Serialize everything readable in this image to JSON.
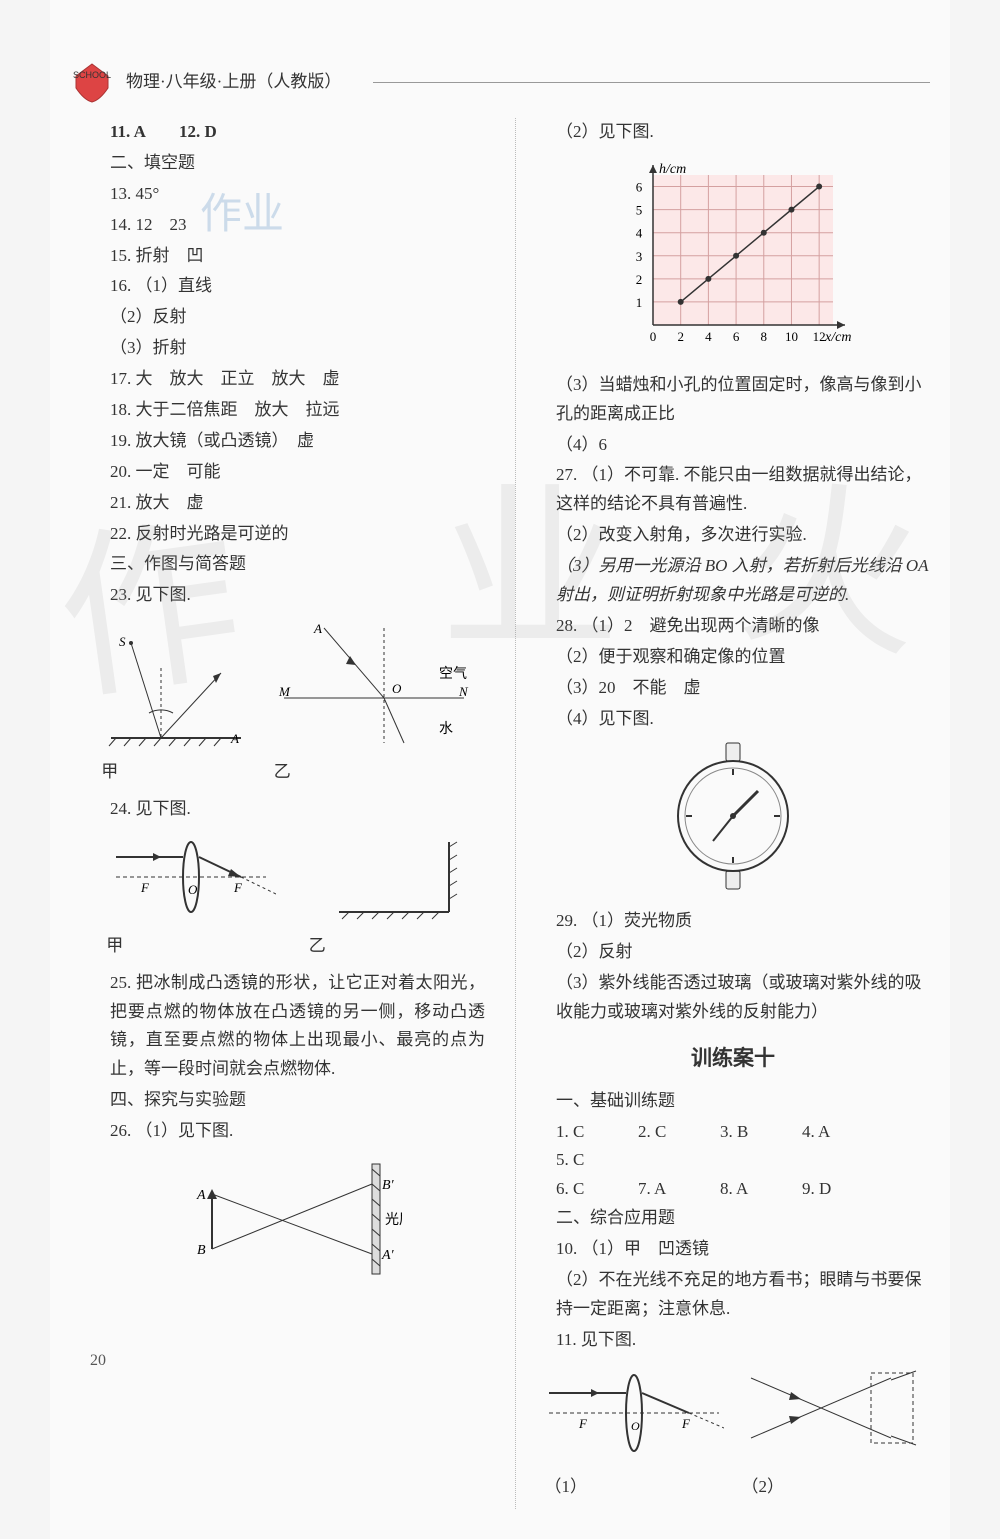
{
  "header": {
    "title": "物理·八年级·上册（人教版）",
    "logo_text": "SCHOOL"
  },
  "page_number": "20",
  "watermarks": {
    "big1": "作",
    "big2": "业",
    "big3": "火",
    "small": "作业"
  },
  "left": {
    "l11_12": "11. A　　12. D",
    "sec2": "二、填空题",
    "l13": "13. 45°",
    "l14": "14. 12　23",
    "l15": "15. 折射　凹",
    "l16": "16. （1）直线",
    "l16b": "（2）反射",
    "l16c": "（3）折射",
    "l17": "17. 大　放大　正立　放大　虚",
    "l18": "18. 大于二倍焦距　放大　拉远",
    "l19": "19. 放大镜（或凸透镜）　虚",
    "l20": "20. 一定　可能",
    "l21": "21. 放大　虚",
    "l22": "22. 反射时光路是可逆的",
    "sec3": "三、作图与简答题",
    "l23": "23. 见下图.",
    "diag23": {
      "left_label": "甲",
      "right_label": "乙",
      "s": "S",
      "a": "A",
      "M": "M",
      "N": "N",
      "O": "O",
      "air": "空气",
      "water": "水"
    },
    "l24": "24. 见下图.",
    "diag24": {
      "left_label": "甲",
      "right_label": "乙",
      "F": "F",
      "O": "O"
    },
    "l25": "25. 把冰制成凸透镜的形状，让它正对着太阳光，把要点燃的物体放在凸透镜的另一侧，移动凸透镜，直至要点燃的物体上出现最小、最亮的点为止，等一段时间就会点燃物体.",
    "sec4": "四、探究与实验题",
    "l26": "26. （1）见下图.",
    "diag26": {
      "A": "A",
      "B": "B",
      "Ap": "A′",
      "Bp": "B′",
      "screen": "光屏"
    }
  },
  "right": {
    "l26_2": "（2）见下图.",
    "chart": {
      "ylabel": "h/cm",
      "xlabel": "x/cm",
      "yticks": [
        "1",
        "2",
        "3",
        "4",
        "5",
        "6"
      ],
      "xticks": [
        "0",
        "2",
        "4",
        "6",
        "8",
        "10",
        "12"
      ],
      "points": [
        [
          2,
          1
        ],
        [
          4,
          2
        ],
        [
          6,
          3
        ],
        [
          8,
          4
        ],
        [
          10,
          5
        ],
        [
          12,
          6
        ]
      ],
      "grid_color": "#d4a0a0",
      "line_color": "#333",
      "bg": "#fce8e8"
    },
    "l26_3": "（3）当蜡烛和小孔的位置固定时，像高与像到小孔的距离成正比",
    "l26_4": "（4）6",
    "l27": "27. （1）不可靠. 不能只由一组数据就得出结论，这样的结论不具有普遍性.",
    "l27_2": "（2）改变入射角，多次进行实验.",
    "l27_3": "（3）另用一光源沿 BO 入射，若折射后光线沿 OA 射出，则证明折射现象中光路是可逆的.",
    "l28": "28. （1）2　避免出现两个清晰的像",
    "l28_2": "（2）便于观察和确定像的位置",
    "l28_3": "（3）20　不能　虚",
    "l28_4": "（4）见下图.",
    "l29": "29. （1）荧光物质",
    "l29_2": "（2）反射",
    "l29_3": "（3）紫外线能否透过玻璃（或玻璃对紫外线的吸收能力或玻璃对紫外线的反射能力）",
    "title10": "训练案十",
    "sec_base": "一、基础训练题",
    "row1": {
      "a1": "1. C",
      "a2": "2. C",
      "a3": "3. B",
      "a4": "4. A",
      "a5": "5. C"
    },
    "row2": {
      "a6": "6. C",
      "a7": "7. A",
      "a8": "8. A",
      "a9": "9. D"
    },
    "sec_app": "二、综合应用题",
    "l10": "10. （1）甲　凹透镜",
    "l10_2": "（2）不在光线不充足的地方看书；眼睛与书要保持一定距离；注意休息.",
    "l11": "11. 见下图.",
    "diag11": {
      "left_label": "（1）",
      "right_label": "（2）",
      "F": "F",
      "O": "O"
    }
  }
}
